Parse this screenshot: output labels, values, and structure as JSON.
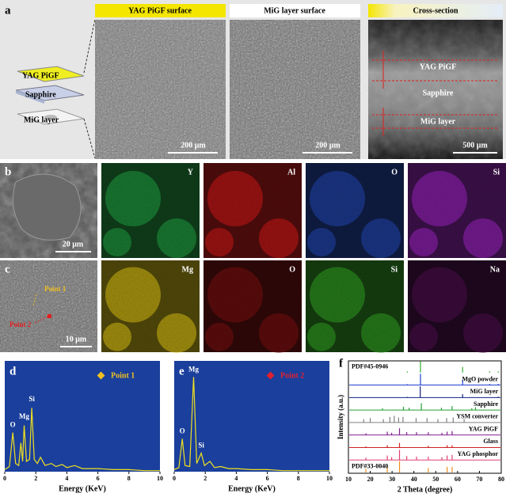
{
  "panel_a": {
    "label": "a",
    "schematic": [
      "YAG PiGF",
      "Sapphire",
      "MiG layer"
    ],
    "images": [
      {
        "header": "YAG PiGF surface",
        "scale": "200 μm"
      },
      {
        "header": "MiG layer surface",
        "scale": "200 μm"
      },
      {
        "header": "Cross-section",
        "scale": "500 μm",
        "layers": [
          "YAG PiGF",
          "Sapphire",
          "MiG layer"
        ]
      }
    ]
  },
  "panel_b": {
    "label": "b",
    "scale": "20 μm",
    "maps": [
      {
        "element": "Y",
        "color": "#1fa040"
      },
      {
        "element": "Al",
        "color": "#d01818"
      },
      {
        "element": "O",
        "color": "#2046b0"
      },
      {
        "element": "Si",
        "color": "#9a22c0"
      }
    ]
  },
  "panel_c": {
    "label": "c",
    "scale": "10 μm",
    "points": [
      "Point 1",
      "Point 2"
    ],
    "maps": [
      {
        "element": "Mg",
        "color": "#d8c010"
      },
      {
        "element": "O",
        "color": "#7a0c0c"
      },
      {
        "element": "Si",
        "color": "#30a020"
      },
      {
        "element": "Na",
        "color": "#4a0c4a"
      }
    ]
  },
  "chart_data": [
    {
      "type": "line",
      "label": "d",
      "x_label": "Energy (KeV)",
      "xlim": [
        0,
        10
      ],
      "xticks": [
        0,
        2,
        4,
        6,
        8,
        10
      ],
      "ylim": [
        0,
        100
      ],
      "x": [
        0,
        0.3,
        0.52,
        0.7,
        0.9,
        1.04,
        1.15,
        1.25,
        1.4,
        1.6,
        1.74,
        1.9,
        2.1,
        2.3,
        2.6,
        3.0,
        3.3,
        3.7,
        4.0,
        4.5,
        5.0,
        6.0,
        7.0,
        8.0,
        9.0,
        10
      ],
      "series": [
        {
          "name": "Point 1",
          "color": "#f0e020",
          "marker": "#f0c020",
          "values": [
            2,
            5,
            38,
            8,
            6,
            28,
            10,
            45,
            10,
            12,
            62,
            12,
            8,
            14,
            6,
            8,
            5,
            7,
            4,
            6,
            3,
            3,
            2,
            2,
            1,
            1
          ]
        }
      ],
      "annotations": [
        {
          "text": "O",
          "x": 0.52,
          "y": 42
        },
        {
          "text": "Mg",
          "x": 1.25,
          "y": 50
        },
        {
          "text": "Si",
          "x": 1.74,
          "y": 67
        }
      ]
    },
    {
      "type": "line",
      "label": "e",
      "x_label": "Energy (KeV)",
      "xlim": [
        0,
        10
      ],
      "xticks": [
        0,
        2,
        4,
        6,
        8,
        10
      ],
      "ylim": [
        0,
        100
      ],
      "x": [
        0,
        0.3,
        0.52,
        0.7,
        1.0,
        1.25,
        1.45,
        1.74,
        1.95,
        2.3,
        2.6,
        3.0,
        3.5,
        4.0,
        5,
        6,
        7,
        8,
        9,
        10
      ],
      "series": [
        {
          "name": "Point 2",
          "color": "#f0e020",
          "marker": "#e02030",
          "values": [
            2,
            4,
            32,
            6,
            5,
            92,
            8,
            18,
            6,
            10,
            4,
            5,
            3,
            3,
            2,
            2,
            1,
            1,
            1,
            1
          ]
        }
      ],
      "annotations": [
        {
          "text": "O",
          "x": 0.52,
          "y": 36
        },
        {
          "text": "Mg",
          "x": 1.25,
          "y": 96
        },
        {
          "text": "Si",
          "x": 1.74,
          "y": 22
        }
      ]
    },
    {
      "type": "stick",
      "label": "f",
      "x_label": "2 Theta (degree)",
      "y_label": "Intensity (a.u.)",
      "xlim": [
        10,
        80
      ],
      "xticks": [
        10,
        20,
        30,
        40,
        50,
        60,
        70,
        80
      ],
      "ylim": [
        0,
        100
      ],
      "series": [
        {
          "name": "PDF#45-0946",
          "color": "#30b030",
          "x": [
            37,
            43,
            62.3,
            74.7,
            78.6
          ],
          "values": [
            10,
            100,
            50,
            12,
            12
          ]
        },
        {
          "name": "MgO powder",
          "color": "#2040d0",
          "x": [
            37,
            43,
            62.3,
            74.7,
            78.6
          ],
          "values": [
            8,
            100,
            45,
            10,
            10
          ]
        },
        {
          "name": "MiG layer",
          "color": "#102080",
          "x": [
            37,
            42.9,
            62.3,
            78.6
          ],
          "values": [
            6,
            100,
            30,
            8
          ]
        },
        {
          "name": "Sapphire",
          "color": "#20a030",
          "x": [
            25.6,
            35.2,
            37.8,
            43.4,
            52.6,
            57.5,
            66.5,
            68.2
          ],
          "values": [
            15,
            30,
            20,
            60,
            20,
            35,
            15,
            25
          ]
        },
        {
          "name": "YSM converter",
          "color": "#808080",
          "x": [
            17,
            20,
            26,
            29,
            31,
            33,
            35,
            41,
            46,
            51,
            55,
            58,
            63
          ],
          "values": [
            30,
            40,
            30,
            50,
            60,
            45,
            50,
            40,
            40,
            30,
            40,
            45,
            30
          ]
        },
        {
          "name": "YAG PiGF",
          "color": "#802090",
          "x": [
            18,
            27.8,
            29.8,
            33.4,
            36.7,
            41.2,
            46.6,
            52.8,
            55.2,
            57.5
          ],
          "values": [
            15,
            30,
            20,
            60,
            25,
            25,
            25,
            20,
            30,
            35
          ]
        },
        {
          "name": "Glass",
          "color": "#d02020",
          "x": [
            18,
            27.8,
            33.4,
            46.6,
            55.2,
            57.5
          ],
          "values": [
            10,
            20,
            40,
            15,
            20,
            20
          ]
        },
        {
          "name": "YAG phosphor",
          "color": "#e04070",
          "x": [
            18,
            27.8,
            29.8,
            33.4,
            36.7,
            41.2,
            46.6,
            52.8,
            55.2,
            57.5
          ],
          "values": [
            20,
            40,
            25,
            90,
            35,
            30,
            30,
            25,
            40,
            45
          ]
        },
        {
          "name": "PDF#33-0040",
          "color": "#f09020",
          "x": [
            18,
            27.8,
            33.4,
            46.6,
            55.2,
            57.5
          ],
          "values": [
            30,
            50,
            100,
            40,
            50,
            50
          ]
        }
      ]
    }
  ]
}
